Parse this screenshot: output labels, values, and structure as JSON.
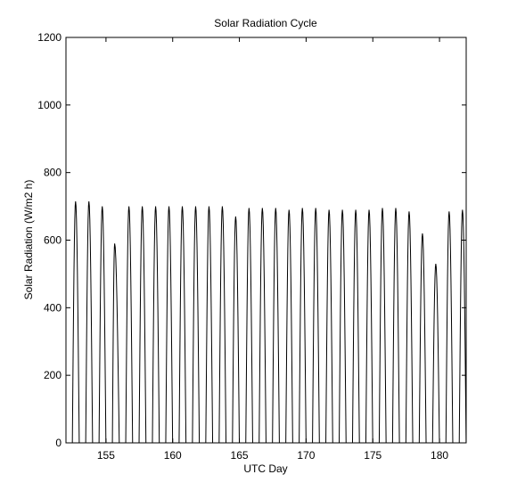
{
  "chart_data": {
    "type": "line",
    "title": "Solar Radiation Cycle",
    "xlabel": "UTC Day",
    "ylabel": "Solar Radiation (W/m2 h)",
    "xlim": [
      152,
      182
    ],
    "ylim": [
      0,
      1200
    ],
    "x_ticks": [
      155,
      160,
      165,
      170,
      175,
      180
    ],
    "y_ticks": [
      0,
      200,
      400,
      600,
      800,
      1000,
      1200
    ],
    "grid": false,
    "line_color": "#000000",
    "daily_peaks": [
      {
        "day": 152,
        "peak_x": 152.72,
        "peak": 715
      },
      {
        "day": 153,
        "peak_x": 153.72,
        "peak": 715
      },
      {
        "day": 154,
        "peak_x": 154.72,
        "peak": 700
      },
      {
        "day": 155,
        "peak_x": 155.65,
        "peak": 590
      },
      {
        "day": 156,
        "peak_x": 156.72,
        "peak": 700
      },
      {
        "day": 157,
        "peak_x": 157.72,
        "peak": 700
      },
      {
        "day": 158,
        "peak_x": 158.72,
        "peak": 700
      },
      {
        "day": 159,
        "peak_x": 159.72,
        "peak": 700
      },
      {
        "day": 160,
        "peak_x": 160.72,
        "peak": 700
      },
      {
        "day": 161,
        "peak_x": 161.72,
        "peak": 700
      },
      {
        "day": 162,
        "peak_x": 162.72,
        "peak": 700
      },
      {
        "day": 163,
        "peak_x": 163.72,
        "peak": 700
      },
      {
        "day": 164,
        "peak_x": 164.72,
        "peak": 670
      },
      {
        "day": 165,
        "peak_x": 165.72,
        "peak": 695
      },
      {
        "day": 166,
        "peak_x": 166.72,
        "peak": 695
      },
      {
        "day": 167,
        "peak_x": 167.72,
        "peak": 695
      },
      {
        "day": 168,
        "peak_x": 168.72,
        "peak": 690
      },
      {
        "day": 169,
        "peak_x": 169.72,
        "peak": 695
      },
      {
        "day": 170,
        "peak_x": 170.72,
        "peak": 695
      },
      {
        "day": 171,
        "peak_x": 171.72,
        "peak": 690
      },
      {
        "day": 172,
        "peak_x": 172.72,
        "peak": 690
      },
      {
        "day": 173,
        "peak_x": 173.72,
        "peak": 690
      },
      {
        "day": 174,
        "peak_x": 174.72,
        "peak": 690
      },
      {
        "day": 175,
        "peak_x": 175.72,
        "peak": 695
      },
      {
        "day": 176,
        "peak_x": 176.72,
        "peak": 695
      },
      {
        "day": 177,
        "peak_x": 177.72,
        "peak": 685
      },
      {
        "day": 178,
        "peak_x": 178.72,
        "peak": 620
      },
      {
        "day": 179,
        "peak_x": 179.72,
        "peak": 530
      },
      {
        "day": 180,
        "peak_x": 180.72,
        "peak": 685
      },
      {
        "day": 181,
        "peak_x": 181.72,
        "peak": 690
      }
    ]
  }
}
